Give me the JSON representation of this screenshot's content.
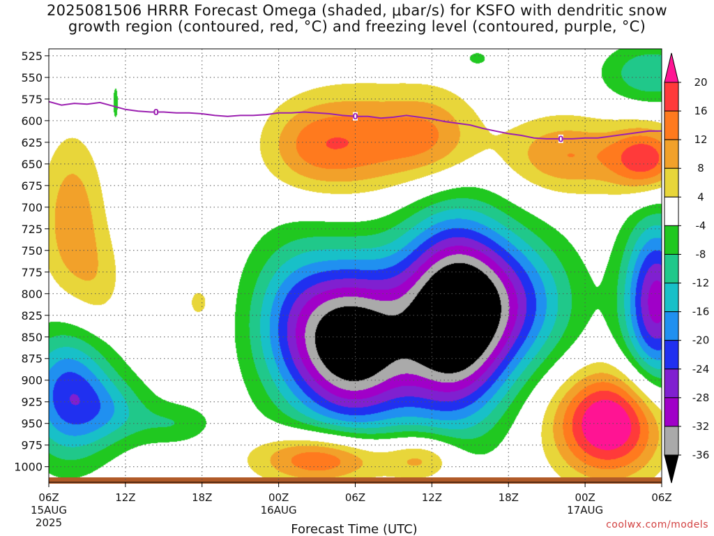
{
  "title": {
    "line1": "2025081506 HRRR Forecast Omega (shaded, μbar/s) for KSFO with dendritic snow",
    "line2": "growth region (contoured, red, °C) and freezing level (contoured, purple, °C)"
  },
  "credit": "coolwx.com/models",
  "chart_data": {
    "type": "heatmap",
    "model_run": "2025081506",
    "model": "HRRR",
    "station": "KSFO",
    "variable": "Omega (μbar/s)",
    "xlabel": "Forecast Time (UTC)",
    "ylabel": "",
    "x_ticks": [
      {
        "hours": 0,
        "label": "06Z",
        "sub": "15AUG",
        "sub2": "2025"
      },
      {
        "hours": 6,
        "label": "12Z",
        "sub": "",
        "sub2": ""
      },
      {
        "hours": 12,
        "label": "18Z",
        "sub": "",
        "sub2": ""
      },
      {
        "hours": 18,
        "label": "00Z",
        "sub": "16AUG",
        "sub2": ""
      },
      {
        "hours": 24,
        "label": "06Z",
        "sub": "",
        "sub2": ""
      },
      {
        "hours": 30,
        "label": "12Z",
        "sub": "",
        "sub2": ""
      },
      {
        "hours": 36,
        "label": "18Z",
        "sub": "",
        "sub2": ""
      },
      {
        "hours": 42,
        "label": "00Z",
        "sub": "17AUG",
        "sub2": ""
      },
      {
        "hours": 48,
        "label": "06Z",
        "sub": "",
        "sub2": ""
      }
    ],
    "xlim": [
      0,
      48
    ],
    "y_levels_hpa": [
      525,
      550,
      575,
      600,
      625,
      650,
      675,
      700,
      725,
      750,
      775,
      800,
      825,
      850,
      875,
      900,
      925,
      950,
      975,
      1000
    ],
    "ylim": [
      517,
      1018
    ],
    "grid": true,
    "colorbar": {
      "labels": [
        20,
        16,
        12,
        8,
        4,
        -4,
        -8,
        -12,
        -16,
        -20,
        -24,
        -28,
        -32,
        -36
      ],
      "bins": [
        {
          "min": 20,
          "max": 24,
          "color": "#ff1493"
        },
        {
          "min": 16,
          "max": 20,
          "color": "#ff3a3a"
        },
        {
          "min": 12,
          "max": 16,
          "color": "#ff7a1e"
        },
        {
          "min": 8,
          "max": 12,
          "color": "#f2a12a"
        },
        {
          "min": 4,
          "max": 8,
          "color": "#e8d63a"
        },
        {
          "min": -4,
          "max": 4,
          "color": "#ffffff"
        },
        {
          "min": -8,
          "max": -4,
          "color": "#20c820"
        },
        {
          "min": -12,
          "max": -8,
          "color": "#20c88a"
        },
        {
          "min": -16,
          "max": -12,
          "color": "#18c0c8"
        },
        {
          "min": -20,
          "max": -16,
          "color": "#2090f0"
        },
        {
          "min": -24,
          "max": -20,
          "color": "#2030f0"
        },
        {
          "min": -28,
          "max": -24,
          "color": "#8020d0"
        },
        {
          "min": -32,
          "max": -28,
          "color": "#a000c8"
        },
        {
          "min": -36,
          "max": -32,
          "color": "#aaaaaa"
        },
        {
          "min": -40,
          "max": -36,
          "color": "#000000"
        }
      ]
    },
    "omega_centers": [
      {
        "t": 1.5,
        "p": 915,
        "rx": 3.4,
        "ry": 75,
        "peak": -22
      },
      {
        "t": 1.8,
        "p": 715,
        "rx": 2.4,
        "ry": 95,
        "peak": 11
      },
      {
        "t": 5.2,
        "p": 935,
        "rx": 3.2,
        "ry": 40,
        "peak": -9
      },
      {
        "t": 10.0,
        "p": 950,
        "rx": 3.0,
        "ry": 25,
        "peak": -7
      },
      {
        "t": 4.0,
        "p": 790,
        "rx": 2.0,
        "ry": 60,
        "peak": 5
      },
      {
        "t": 11.8,
        "p": 810,
        "rx": 1.5,
        "ry": 30,
        "peak": 5
      },
      {
        "t": 23.9,
        "p": 860,
        "rx": 4.6,
        "ry": 95,
        "peak": -40
      },
      {
        "t": 31.6,
        "p": 830,
        "rx": 4.3,
        "ry": 115,
        "peak": -42
      },
      {
        "t": 19.0,
        "p": 830,
        "rx": 3.8,
        "ry": 95,
        "peak": -14
      },
      {
        "t": 36.5,
        "p": 810,
        "rx": 4.8,
        "ry": 80,
        "peak": -18
      },
      {
        "t": 47.6,
        "p": 810,
        "rx": 2.6,
        "ry": 95,
        "peak": -30
      },
      {
        "t": 21.5,
        "p": 990,
        "rx": 5.0,
        "ry": 30,
        "peak": 19
      },
      {
        "t": 29.3,
        "p": 990,
        "rx": 3.0,
        "ry": 28,
        "peak": 12
      },
      {
        "t": 43.8,
        "p": 950,
        "rx": 4.2,
        "ry": 60,
        "peak": 26
      },
      {
        "t": 24.0,
        "p": 625,
        "rx": 5.0,
        "ry": 60,
        "peak": 13
      },
      {
        "t": 30.0,
        "p": 620,
        "rx": 3.8,
        "ry": 55,
        "peak": 11
      },
      {
        "t": 20.0,
        "p": 630,
        "rx": 3.6,
        "ry": 50,
        "peak": 7
      },
      {
        "t": 40.5,
        "p": 640,
        "rx": 5.0,
        "ry": 45,
        "peak": 12
      },
      {
        "t": 46.8,
        "p": 645,
        "rx": 2.8,
        "ry": 38,
        "peak": 18
      },
      {
        "t": 47.2,
        "p": 545,
        "rx": 3.8,
        "ry": 35,
        "peak": -12
      },
      {
        "t": 33.5,
        "p": 528,
        "rx": 1.5,
        "ry": 15,
        "peak": -5
      },
      {
        "t": 5.2,
        "p": 580,
        "rx": 0.4,
        "ry": 40,
        "peak": -5
      }
    ],
    "freezing_level": {
      "color": "#9b1fb0",
      "label": "0",
      "label_hours": [
        8.4,
        24.0,
        40.1
      ],
      "points": [
        [
          0,
          578
        ],
        [
          1,
          582
        ],
        [
          2,
          580
        ],
        [
          3,
          581
        ],
        [
          4,
          579
        ],
        [
          5,
          583
        ],
        [
          6,
          587
        ],
        [
          7,
          589
        ],
        [
          8,
          590
        ],
        [
          9,
          590
        ],
        [
          10,
          591
        ],
        [
          11,
          591
        ],
        [
          12,
          592
        ],
        [
          13,
          594
        ],
        [
          14,
          595
        ],
        [
          15,
          594
        ],
        [
          16,
          594
        ],
        [
          17,
          593
        ],
        [
          18,
          591
        ],
        [
          19,
          591
        ],
        [
          20,
          590
        ],
        [
          21,
          591
        ],
        [
          22,
          592
        ],
        [
          23,
          594
        ],
        [
          24,
          595
        ],
        [
          25,
          595
        ],
        [
          26,
          597
        ],
        [
          27,
          596
        ],
        [
          28,
          594
        ],
        [
          29,
          596
        ],
        [
          30,
          598
        ],
        [
          31,
          601
        ],
        [
          32,
          603
        ],
        [
          33,
          605
        ],
        [
          34,
          609
        ],
        [
          35,
          612
        ],
        [
          36,
          615
        ],
        [
          37,
          617
        ],
        [
          38,
          620
        ],
        [
          39,
          621
        ],
        [
          40,
          621
        ],
        [
          41,
          621
        ],
        [
          42,
          620
        ],
        [
          43,
          620
        ],
        [
          44,
          618
        ],
        [
          45,
          616
        ],
        [
          46,
          614
        ],
        [
          47,
          612
        ],
        [
          48,
          612
        ]
      ]
    },
    "ground_color": "#b05a28"
  }
}
